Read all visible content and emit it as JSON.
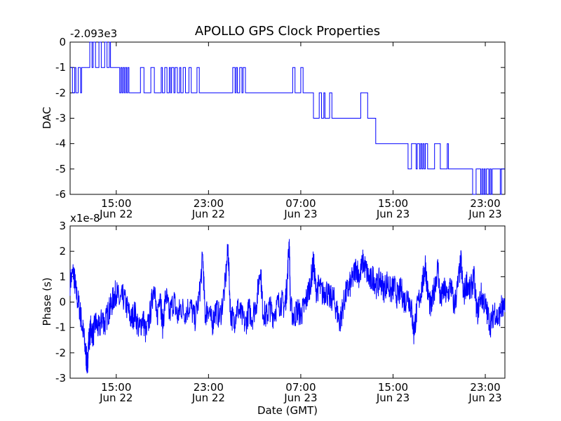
{
  "figure": {
    "title": "APOLLO GPS Clock Properties",
    "xlabel": "Date (GMT)"
  },
  "chart_data": [
    {
      "type": "line",
      "title": "APOLLO GPS Clock Properties",
      "ylabel": "DAC",
      "offset_label": "-2.093e3",
      "ylim": [
        -6,
        0
      ],
      "yticks": [
        "0",
        "-1",
        "-2",
        "-3",
        "-4",
        "-5",
        "-6"
      ],
      "xlim": [
        "2012-06-22T11:00",
        "2012-06-24T00:30"
      ],
      "xticks": [
        {
          "time": "15:00",
          "date": "Jun 22"
        },
        {
          "time": "23:00",
          "date": "Jun 22"
        },
        {
          "time": "07:00",
          "date": "Jun 23"
        },
        {
          "time": "15:00",
          "date": "Jun 23"
        },
        {
          "time": "23:00",
          "date": "Jun 23"
        }
      ],
      "color": "#0000ff",
      "series": [
        {
          "x_hours_since_start_note": "",
          "points": [
            [
              0.0,
              -1
            ],
            [
              0.2,
              -2
            ],
            [
              0.4,
              -1
            ],
            [
              0.5,
              -2
            ],
            [
              0.7,
              -1
            ],
            [
              0.9,
              -2
            ],
            [
              1.0,
              -1
            ],
            [
              1.6,
              -1
            ],
            [
              1.7,
              0
            ],
            [
              1.9,
              -1
            ],
            [
              2.0,
              0
            ],
            [
              2.2,
              -1
            ],
            [
              2.4,
              -1
            ],
            [
              2.5,
              0
            ],
            [
              2.7,
              -1
            ],
            [
              2.9,
              -1
            ],
            [
              3.0,
              0
            ],
            [
              3.2,
              -1
            ],
            [
              3.4,
              0
            ],
            [
              3.5,
              -1
            ],
            [
              4.2,
              -1
            ],
            [
              4.3,
              -2
            ],
            [
              4.4,
              -1
            ],
            [
              4.5,
              -2
            ],
            [
              4.6,
              -1
            ],
            [
              4.7,
              -2
            ],
            [
              4.8,
              -1
            ],
            [
              4.9,
              -2
            ],
            [
              5.0,
              -1
            ],
            [
              5.1,
              -2
            ],
            [
              6.0,
              -2
            ],
            [
              6.1,
              -1
            ],
            [
              6.4,
              -2
            ],
            [
              6.9,
              -2
            ],
            [
              7.0,
              -1
            ],
            [
              7.3,
              -2
            ],
            [
              7.8,
              -2
            ],
            [
              7.9,
              -1
            ],
            [
              8.0,
              -2
            ],
            [
              8.2,
              -1
            ],
            [
              8.4,
              -2
            ],
            [
              8.6,
              -1
            ],
            [
              8.7,
              -2
            ],
            [
              8.8,
              -1
            ],
            [
              9.0,
              -2
            ],
            [
              9.1,
              -1
            ],
            [
              9.3,
              -2
            ],
            [
              9.5,
              -1
            ],
            [
              9.6,
              -2
            ],
            [
              9.8,
              -1
            ],
            [
              10.0,
              -2
            ],
            [
              10.3,
              -1
            ],
            [
              10.5,
              -2
            ],
            [
              11.0,
              -1
            ],
            [
              11.2,
              -2
            ],
            [
              14.0,
              -2
            ],
            [
              14.1,
              -1
            ],
            [
              14.3,
              -2
            ],
            [
              14.4,
              -1
            ],
            [
              14.5,
              -2
            ],
            [
              14.7,
              -1
            ],
            [
              14.9,
              -2
            ],
            [
              15.0,
              -1
            ],
            [
              15.2,
              -2
            ],
            [
              19.2,
              -2
            ],
            [
              19.3,
              -1
            ],
            [
              19.5,
              -2
            ],
            [
              19.9,
              -2
            ],
            [
              20.0,
              -1
            ],
            [
              20.2,
              -2
            ],
            [
              21.0,
              -2
            ],
            [
              21.1,
              -3
            ],
            [
              21.5,
              -3
            ],
            [
              21.6,
              -2
            ],
            [
              21.8,
              -3
            ],
            [
              22.0,
              -2
            ],
            [
              22.1,
              -3
            ],
            [
              22.4,
              -3
            ],
            [
              22.5,
              -2
            ],
            [
              22.7,
              -3
            ],
            [
              25.1,
              -3
            ],
            [
              25.2,
              -2
            ],
            [
              25.7,
              -2
            ],
            [
              25.8,
              -3
            ],
            [
              26.4,
              -3
            ],
            [
              26.5,
              -4
            ],
            [
              29.2,
              -4
            ],
            [
              29.3,
              -5
            ],
            [
              29.5,
              -5
            ],
            [
              29.6,
              -4
            ],
            [
              29.9,
              -4
            ],
            [
              30.0,
              -5
            ],
            [
              30.1,
              -4
            ],
            [
              30.3,
              -5
            ],
            [
              30.4,
              -4
            ],
            [
              30.5,
              -5
            ],
            [
              30.6,
              -4
            ],
            [
              30.7,
              -5
            ],
            [
              30.8,
              -4
            ],
            [
              31.0,
              -5
            ],
            [
              31.5,
              -5
            ],
            [
              31.6,
              -4
            ],
            [
              32.0,
              -4
            ],
            [
              32.1,
              -5
            ],
            [
              32.6,
              -5
            ],
            [
              32.7,
              -4
            ],
            [
              32.8,
              -5
            ],
            [
              34.8,
              -5
            ],
            [
              34.9,
              -6
            ],
            [
              35.1,
              -6
            ],
            [
              35.2,
              -5
            ],
            [
              35.5,
              -5
            ],
            [
              35.6,
              -6
            ],
            [
              35.7,
              -5
            ],
            [
              35.8,
              -6
            ],
            [
              35.9,
              -5
            ],
            [
              36.0,
              -6
            ],
            [
              36.1,
              -5
            ],
            [
              36.3,
              -6
            ],
            [
              36.4,
              -5
            ],
            [
              36.5,
              -6
            ],
            [
              36.6,
              -5
            ],
            [
              37.2,
              -5
            ],
            [
              37.3,
              -6
            ],
            [
              37.4,
              -5
            ],
            [
              37.7,
              -5
            ]
          ]
        }
      ]
    },
    {
      "type": "line",
      "ylabel": "Phase (s)",
      "offset_label": "x1e-8",
      "ylim": [
        -3,
        3
      ],
      "yticks": [
        "3",
        "2",
        "1",
        "0",
        "-1",
        "-2",
        "-3"
      ],
      "xlabel": "Date (GMT)",
      "xticks": [
        {
          "time": "15:00",
          "date": "Jun 22"
        },
        {
          "time": "23:00",
          "date": "Jun 22"
        },
        {
          "time": "07:00",
          "date": "Jun 23"
        },
        {
          "time": "15:00",
          "date": "Jun 23"
        },
        {
          "time": "23:00",
          "date": "Jun 23"
        }
      ],
      "color": "#0000ff",
      "series": [
        {
          "points": [
            [
              0.0,
              0.8
            ],
            [
              0.3,
              1.2
            ],
            [
              0.5,
              0.4
            ],
            [
              0.8,
              -0.2
            ],
            [
              1.0,
              -0.8
            ],
            [
              1.2,
              -1.4
            ],
            [
              1.4,
              -2.2
            ],
            [
              1.5,
              -2.5
            ],
            [
              1.6,
              -1.6
            ],
            [
              1.8,
              -1.0
            ],
            [
              2.0,
              -1.3
            ],
            [
              2.2,
              -0.8
            ],
            [
              2.5,
              -1.1
            ],
            [
              2.8,
              -0.6
            ],
            [
              3.0,
              -0.9
            ],
            [
              3.3,
              -0.4
            ],
            [
              3.5,
              -0.2
            ],
            [
              3.8,
              0.2
            ],
            [
              4.0,
              0.4
            ],
            [
              4.3,
              0.0
            ],
            [
              4.6,
              0.2
            ],
            [
              5.0,
              -0.3
            ],
            [
              5.3,
              -0.7
            ],
            [
              5.6,
              -0.4
            ],
            [
              6.0,
              -1.1
            ],
            [
              6.3,
              -0.6
            ],
            [
              6.6,
              -1.3
            ],
            [
              7.0,
              -0.3
            ],
            [
              7.3,
              0.8
            ],
            [
              7.5,
              -0.8
            ],
            [
              7.8,
              0.5
            ],
            [
              8.0,
              -1.0
            ],
            [
              8.3,
              0.3
            ],
            [
              8.6,
              -0.5
            ],
            [
              9.0,
              0.1
            ],
            [
              9.3,
              -0.6
            ],
            [
              9.6,
              -0.2
            ],
            [
              10.0,
              -0.4
            ],
            [
              10.4,
              -0.1
            ],
            [
              10.8,
              -0.7
            ],
            [
              11.2,
              0.2
            ],
            [
              11.5,
              1.8
            ],
            [
              11.7,
              -0.5
            ],
            [
              12.0,
              -0.2
            ],
            [
              12.3,
              -0.9
            ],
            [
              12.6,
              -0.3
            ],
            [
              13.0,
              -0.6
            ],
            [
              13.4,
              0.5
            ],
            [
              13.7,
              2.1
            ],
            [
              13.9,
              -0.4
            ],
            [
              14.2,
              -0.8
            ],
            [
              14.5,
              -0.2
            ],
            [
              14.8,
              -0.5
            ],
            [
              15.2,
              -0.9
            ],
            [
              15.5,
              -0.3
            ],
            [
              15.8,
              -0.6
            ],
            [
              16.2,
              0.1
            ],
            [
              16.5,
              1.4
            ],
            [
              16.7,
              -0.3
            ],
            [
              17.0,
              -0.6
            ],
            [
              17.3,
              -0.2
            ],
            [
              17.6,
              -0.5
            ],
            [
              18.0,
              -0.1
            ],
            [
              18.3,
              0.0
            ],
            [
              18.6,
              -0.2
            ],
            [
              18.8,
              0.6
            ],
            [
              19.0,
              2.5
            ],
            [
              19.1,
              -0.2
            ],
            [
              19.4,
              -0.6
            ],
            [
              19.7,
              -0.3
            ],
            [
              20.0,
              -0.5
            ],
            [
              20.3,
              -0.2
            ],
            [
              20.6,
              0.3
            ],
            [
              20.9,
              0.9
            ],
            [
              21.1,
              1.6
            ],
            [
              21.3,
              0.5
            ],
            [
              21.6,
              0.6
            ],
            [
              21.9,
              0.3
            ],
            [
              22.2,
              0.5
            ],
            [
              22.5,
              0.1
            ],
            [
              22.8,
              0.2
            ],
            [
              23.1,
              -0.3
            ],
            [
              23.4,
              -0.8
            ],
            [
              23.6,
              -0.3
            ],
            [
              23.9,
              0.3
            ],
            [
              24.2,
              0.6
            ],
            [
              24.5,
              0.9
            ],
            [
              24.8,
              1.4
            ],
            [
              25.1,
              1.0
            ],
            [
              25.4,
              1.6
            ],
            [
              25.7,
              1.2
            ],
            [
              26.0,
              0.8
            ],
            [
              26.3,
              1.0
            ],
            [
              26.6,
              0.6
            ],
            [
              26.9,
              0.9
            ],
            [
              27.2,
              0.5
            ],
            [
              27.5,
              0.8
            ],
            [
              27.8,
              0.4
            ],
            [
              28.1,
              0.6
            ],
            [
              28.4,
              0.2
            ],
            [
              28.7,
              0.5
            ],
            [
              29.0,
              0.0
            ],
            [
              29.3,
              0.3
            ],
            [
              29.6,
              -0.3
            ],
            [
              29.8,
              -1.2
            ],
            [
              30.0,
              -0.5
            ],
            [
              30.3,
              0.2
            ],
            [
              30.6,
              0.8
            ],
            [
              30.8,
              1.5
            ],
            [
              31.0,
              0.4
            ],
            [
              31.3,
              -0.3
            ],
            [
              31.6,
              0.6
            ],
            [
              31.9,
              1.4
            ],
            [
              32.1,
              0.0
            ],
            [
              32.4,
              0.5
            ],
            [
              32.7,
              0.2
            ],
            [
              33.0,
              0.7
            ],
            [
              33.3,
              -0.2
            ],
            [
              33.6,
              0.6
            ],
            [
              33.9,
              1.6
            ],
            [
              34.1,
              0.2
            ],
            [
              34.4,
              0.8
            ],
            [
              34.7,
              0.4
            ],
            [
              35.0,
              1.0
            ],
            [
              35.3,
              -0.5
            ],
            [
              35.6,
              0.3
            ],
            [
              35.9,
              0.0
            ],
            [
              36.2,
              -0.5
            ],
            [
              36.5,
              -0.9
            ],
            [
              36.8,
              -0.3
            ],
            [
              37.1,
              -0.7
            ],
            [
              37.4,
              -0.2
            ],
            [
              37.7,
              -0.4
            ]
          ]
        }
      ]
    }
  ]
}
